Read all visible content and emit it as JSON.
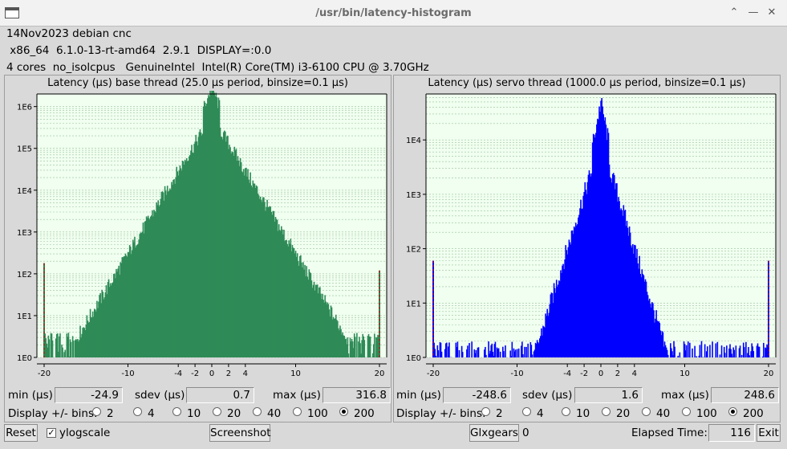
{
  "window": {
    "title": "/usr/bin/latency-histogram"
  },
  "info": {
    "line1": "14Nov2023 debian cnc",
    "line2": " x86_64  6.1.0-13-rt-amd64  2.9.1  DISPLAY=:0.0",
    "line3": "4 cores  no_isolcpus   GenuineIntel  Intel(R) Core(TM) i3-6100 CPU @ 3.70GHz"
  },
  "base": {
    "title": "Latency (µs) base thread (25.0 µs period, binsize=0.1 µs)",
    "min_label": "min (µs)",
    "min_value": "-24.9",
    "sdev_label": "sdev (µs)",
    "sdev_value": "0.7",
    "max_label": "max (µs)",
    "max_value": "316.8",
    "bins_label": "Display +/- bins:",
    "bins": [
      "2",
      "4",
      "10",
      "20",
      "40",
      "100",
      "200"
    ],
    "selected_bin": "200",
    "color": "#2e8b57"
  },
  "servo": {
    "title": "Latency (µs) servo thread (1000.0 µs period, binsize=0.1 µs)",
    "min_label": "min (µs)",
    "min_value": "-248.6",
    "sdev_label": "sdev (µs)",
    "sdev_value": "1.6",
    "max_label": "max (µs)",
    "max_value": "248.6",
    "bins_label": "Display +/- bins:",
    "bins": [
      "2",
      "4",
      "10",
      "20",
      "40",
      "100",
      "200"
    ],
    "selected_bin": "200",
    "color": "#0000ff"
  },
  "bottom": {
    "reset": "Reset",
    "ylogscale": "ylogscale",
    "ylogscale_checked": true,
    "screenshot": "Screenshot",
    "glxgears": "Glxgears",
    "glxgears_count": "0",
    "elapsed_label": "Elapsed Time:",
    "elapsed_value": "116",
    "exit": "Exit"
  },
  "chart_data": [
    {
      "type": "bar",
      "title": "Latency (µs) base thread (25.0 µs period, binsize=0.1 µs)",
      "x_ticks": [
        "-20",
        "-10",
        "-4",
        "-2",
        "0",
        "2",
        "4",
        "10",
        "20"
      ],
      "y_ticks": [
        "1E0",
        "1E1",
        "1E2",
        "1E3",
        "1E4",
        "1E5",
        "1E6"
      ],
      "ylog": true,
      "xlim": [
        -20,
        20
      ],
      "ylim": [
        1,
        2000000
      ],
      "peak": {
        "x": 0,
        "y": 3000000
      },
      "tail_decay_per_us": 0.33,
      "floor": 2,
      "overflow_marks": [
        {
          "x": -20,
          "y": 180
        },
        {
          "x": 20,
          "y": 120
        }
      ],
      "grid": true
    },
    {
      "type": "bar",
      "title": "Latency (µs) servo thread (1000.0 µs period, binsize=0.1 µs)",
      "x_ticks": [
        "-20",
        "-10",
        "-4",
        "-2",
        "0",
        "2",
        "4",
        "10",
        "20"
      ],
      "y_ticks": [
        "1E0",
        "1E1",
        "1E2",
        "1E3",
        "1E4"
      ],
      "ylog": true,
      "xlim": [
        -20,
        20
      ],
      "ylim": [
        1,
        70000
      ],
      "peak": {
        "x": 0,
        "y": 50000
      },
      "tail_decay_per_us": 0.5,
      "floor": 1,
      "overflow_marks": [
        {
          "x": -20,
          "y": 60
        },
        {
          "x": 20,
          "y": 60
        }
      ],
      "grid": true
    }
  ]
}
